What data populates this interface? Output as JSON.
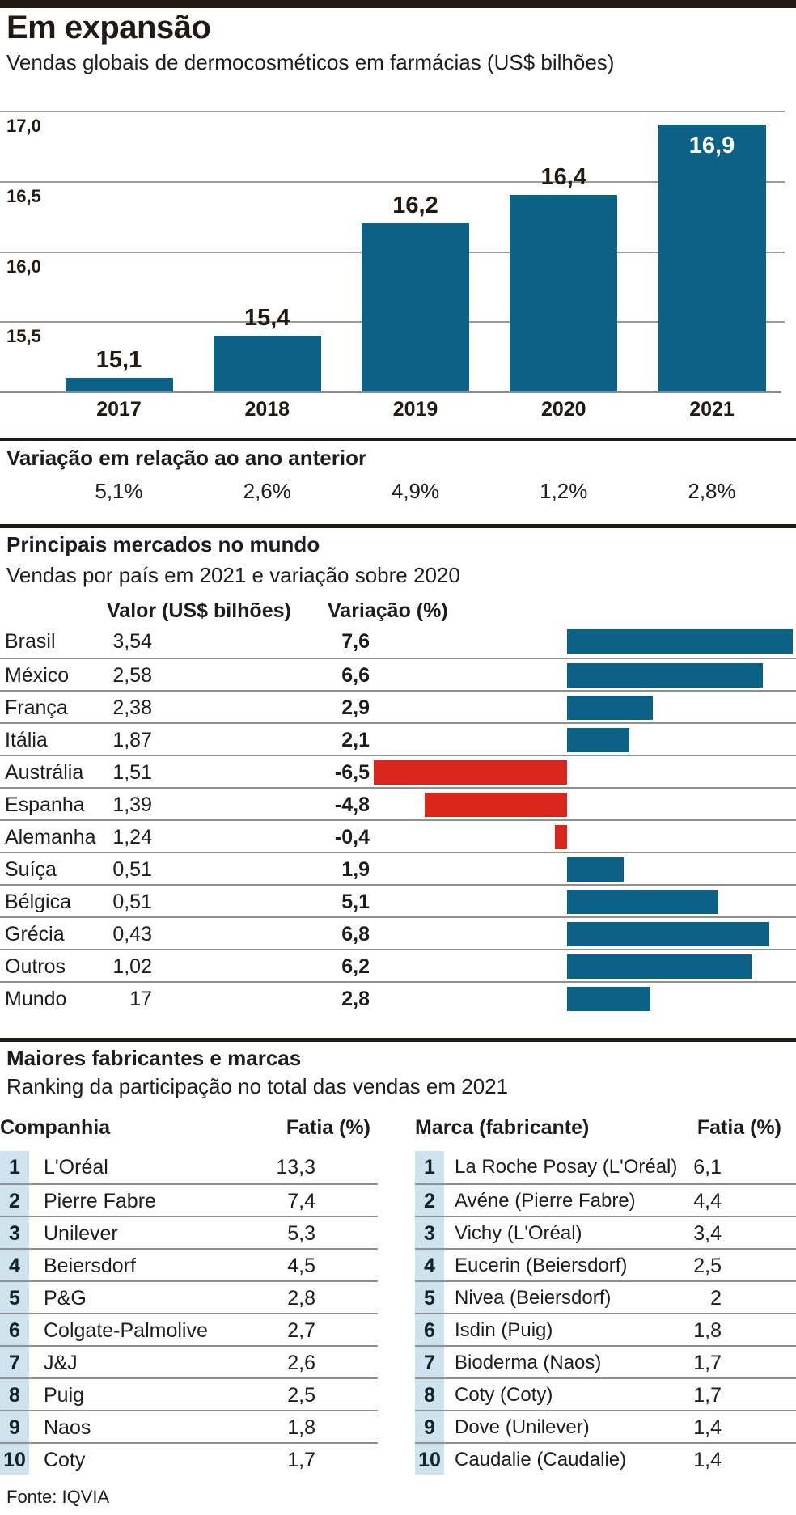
{
  "colors": {
    "bar_blue": "#0c6187",
    "bar_red": "#da251d",
    "rank_badge_bg": "#cfe3ef",
    "text": "#1d1d1b",
    "rule_gray": "#8f8f8f",
    "heavy_rule_black": "#221a12"
  },
  "header": {
    "title": "Em expansão",
    "subtitle": "Vendas globais de dermocosméticos em farmácias (US$ bilhões)"
  },
  "chart_data": [
    {
      "type": "bar",
      "title": "Vendas globais de dermocosméticos em farmácias (US$ bilhões)",
      "categories": [
        "2017",
        "2018",
        "2019",
        "2020",
        "2021"
      ],
      "values": [
        15.1,
        15.4,
        16.2,
        16.4,
        16.9
      ],
      "xlabel": "",
      "ylabel": "",
      "ylim": [
        15.0,
        17.0
      ],
      "yticks": [
        17.0,
        16.5,
        16.0,
        15.5
      ],
      "ytick_labels": [
        "17,0",
        "16,5",
        "16,0",
        "15,5"
      ],
      "grid": true,
      "legend": false,
      "bar_color": "#0c6187",
      "variation_title": "Variação em relação ao ano anterior",
      "variation_values": [
        "5,1%",
        "2,6%",
        "4,9%",
        "1,2%",
        "2,8%"
      ]
    },
    {
      "type": "bar",
      "orientation": "horizontal",
      "title": "Principais mercados no mundo",
      "subtitle": "Vendas por país em 2021 e variação sobre 2020",
      "categories": [
        "Brasil",
        "México",
        "França",
        "Itália",
        "Austrália",
        "Espanha",
        "Alemanha",
        "Suíça",
        "Bélgica",
        "Grécia",
        "Outros",
        "Mundo"
      ],
      "series": [
        {
          "name": "Valor (US$ bilhões)",
          "values": [
            3.54,
            2.58,
            2.38,
            1.87,
            1.51,
            1.39,
            1.24,
            0.51,
            0.51,
            0.43,
            1.02,
            17
          ]
        },
        {
          "name": "Variação (%)",
          "values": [
            7.6,
            6.6,
            2.9,
            2.1,
            -6.5,
            -4.8,
            -0.4,
            1.9,
            5.1,
            6.8,
            6.2,
            2.8
          ]
        }
      ],
      "positive_color": "#0c6187",
      "negative_color": "#da251d"
    }
  ],
  "markets": {
    "title": "Principais mercados no mundo",
    "subtitle": "Vendas por país em 2021 e variação sobre 2020",
    "col_value": "Valor (US$ bilhões)",
    "col_variation": "Variação (%)"
  },
  "makers": {
    "title": "Maiores fabricantes e marcas",
    "subtitle": "Ranking da participação no total das vendas em 2021",
    "companies": {
      "col_name": "Companhia",
      "col_share": "Fatia (%)",
      "rows": [
        {
          "rank": "1",
          "name": "L'Oréal",
          "share": "13,3"
        },
        {
          "rank": "2",
          "name": "Pierre Fabre",
          "share": "7,4"
        },
        {
          "rank": "3",
          "name": "Unilever",
          "share": "5,3"
        },
        {
          "rank": "4",
          "name": "Beiersdorf",
          "share": "4,5"
        },
        {
          "rank": "5",
          "name": "P&G",
          "share": "2,8"
        },
        {
          "rank": "6",
          "name": "Colgate-Palmolive",
          "share": "2,7"
        },
        {
          "rank": "7",
          "name": "J&J",
          "share": "2,6"
        },
        {
          "rank": "8",
          "name": "Puig",
          "share": "2,5"
        },
        {
          "rank": "9",
          "name": "Naos",
          "share": "1,8"
        },
        {
          "rank": "10",
          "name": "Coty",
          "share": "1,7"
        }
      ]
    },
    "brands": {
      "col_name": "Marca (fabricante)",
      "col_share": "Fatia (%)",
      "rows": [
        {
          "rank": "1",
          "name": "La Roche Posay (L'Oréal)",
          "share": "6,1"
        },
        {
          "rank": "2",
          "name": "Avéne (Pierre Fabre)",
          "share": "4,4"
        },
        {
          "rank": "3",
          "name": "Vichy (L'Oréal)",
          "share": "3,4"
        },
        {
          "rank": "4",
          "name": "Eucerin (Beiersdorf)",
          "share": "2,5"
        },
        {
          "rank": "5",
          "name": "Nivea (Beiersdorf)",
          "share": "2"
        },
        {
          "rank": "6",
          "name": "Isdin (Puig)",
          "share": "1,8"
        },
        {
          "rank": "7",
          "name": "Bioderma (Naos)",
          "share": "1,7"
        },
        {
          "rank": "8",
          "name": "Coty (Coty)",
          "share": "1,7"
        },
        {
          "rank": "9",
          "name": "Dove (Unilever)",
          "share": "1,4"
        },
        {
          "rank": "10",
          "name": "Caudalie (Caudalie)",
          "share": "1,4"
        }
      ]
    }
  },
  "footer": {
    "source": "Fonte: IQVIA"
  }
}
